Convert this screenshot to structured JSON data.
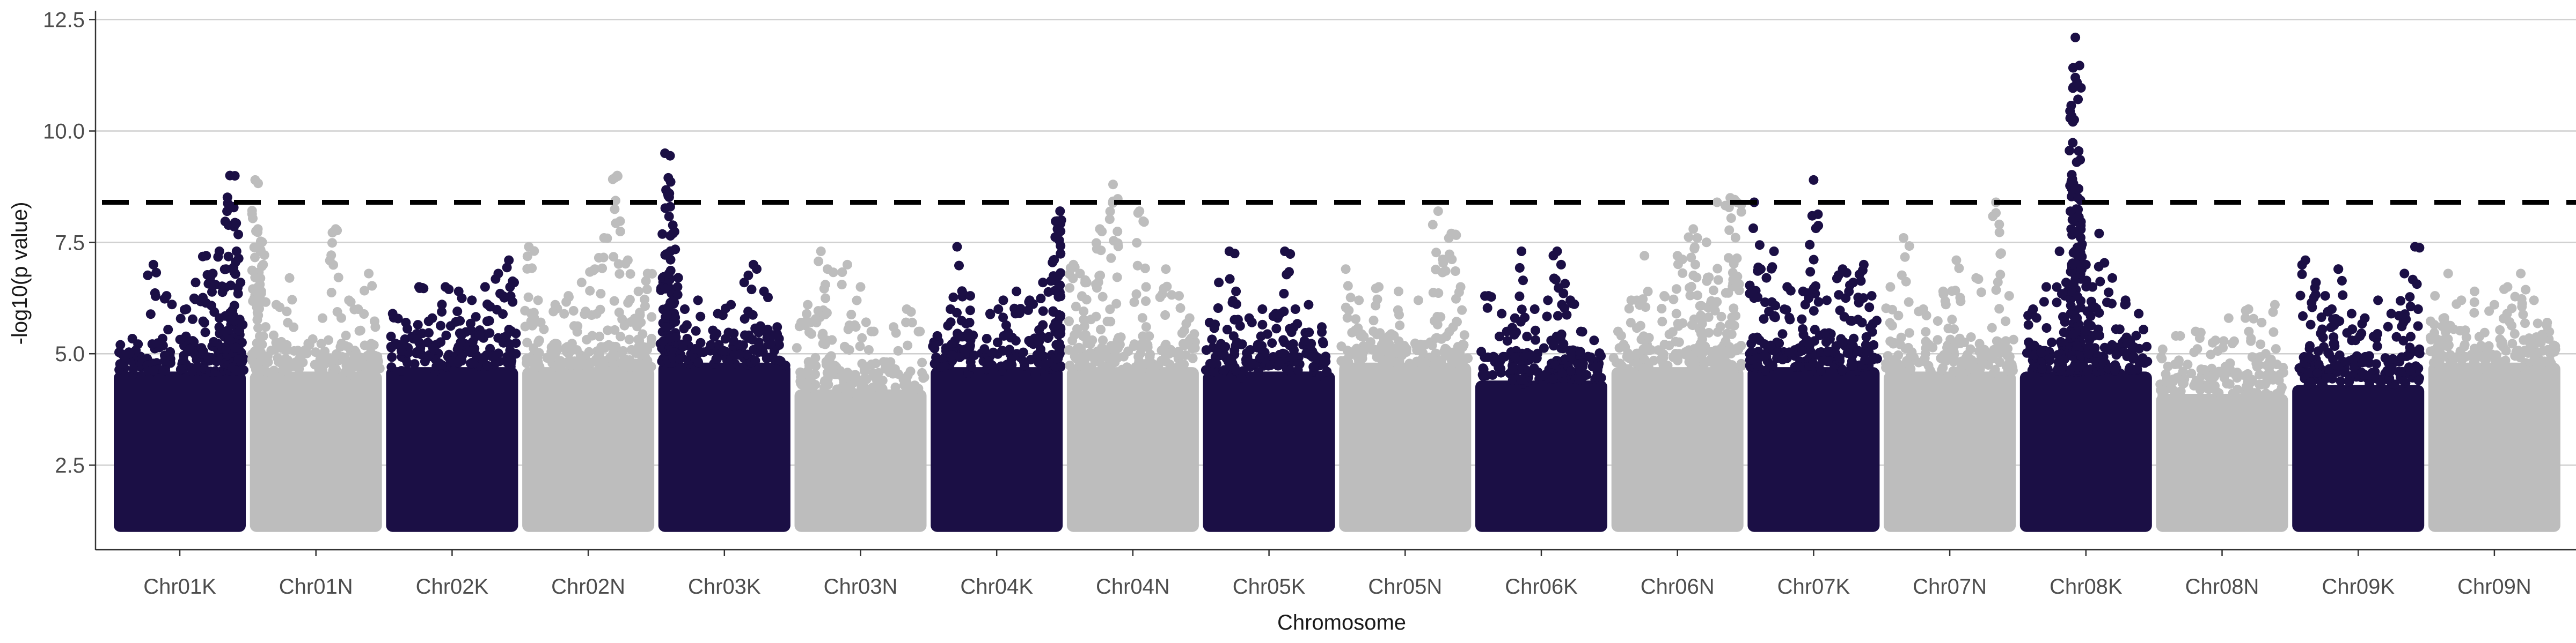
{
  "chart_data": {
    "type": "scatter",
    "subtype": "manhattan",
    "title": "",
    "xlabel": "Chromosome",
    "ylabel": "-log10(p value)",
    "ylim": [
      0.6,
      12.7
    ],
    "yticks": [
      2.5,
      5.0,
      7.5,
      10.0,
      12.5
    ],
    "ytick_labels": [
      "2.5",
      "5.0",
      "7.5",
      "10.0",
      "12.5"
    ],
    "grid": "horizontal major",
    "legend": "none",
    "threshold": 8.4,
    "colors": {
      "odd": "#1b0f45",
      "even": "#bdbdbd",
      "threshold": "#000000"
    },
    "chromosomes": [
      {
        "label": "Chr01K",
        "bulk_max": 4.6,
        "tops": [
          {
            "p": 0.05,
            "y": 5.2
          },
          {
            "p": 0.12,
            "y": 5.0
          },
          {
            "p": 0.3,
            "y": 7.0
          },
          {
            "p": 0.4,
            "y": 6.3
          },
          {
            "p": 0.55,
            "y": 6.0
          },
          {
            "p": 0.62,
            "y": 6.6
          },
          {
            "p": 0.7,
            "y": 7.2
          },
          {
            "p": 0.75,
            "y": 6.8
          },
          {
            "p": 0.8,
            "y": 7.3
          },
          {
            "p": 0.85,
            "y": 6.9
          },
          {
            "p": 0.88,
            "y": 9.0
          },
          {
            "p": 0.9,
            "y": 8.3
          },
          {
            "p": 0.93,
            "y": 7.3
          },
          {
            "p": 0.96,
            "y": 6.6
          }
        ]
      },
      {
        "label": "Chr01N",
        "bulk_max": 4.6,
        "tops": [
          {
            "p": 0.04,
            "y": 8.9
          },
          {
            "p": 0.06,
            "y": 7.8
          },
          {
            "p": 0.08,
            "y": 7.3
          },
          {
            "p": 0.1,
            "y": 7.0
          },
          {
            "p": 0.2,
            "y": 6.1
          },
          {
            "p": 0.3,
            "y": 6.7
          },
          {
            "p": 0.55,
            "y": 5.8
          },
          {
            "p": 0.65,
            "y": 7.8
          },
          {
            "p": 0.75,
            "y": 6.2
          },
          {
            "p": 0.82,
            "y": 6.0
          },
          {
            "p": 0.9,
            "y": 6.8
          },
          {
            "p": 0.95,
            "y": 5.6
          }
        ]
      },
      {
        "label": "Chr02K",
        "bulk_max": 4.7,
        "tops": [
          {
            "p": 0.05,
            "y": 5.9
          },
          {
            "p": 0.15,
            "y": 5.7
          },
          {
            "p": 0.25,
            "y": 6.5
          },
          {
            "p": 0.35,
            "y": 5.8
          },
          {
            "p": 0.45,
            "y": 6.5
          },
          {
            "p": 0.55,
            "y": 6.4
          },
          {
            "p": 0.65,
            "y": 6.2
          },
          {
            "p": 0.75,
            "y": 6.5
          },
          {
            "p": 0.85,
            "y": 6.8
          },
          {
            "p": 0.93,
            "y": 7.1
          },
          {
            "p": 0.97,
            "y": 6.6
          }
        ]
      },
      {
        "label": "Chr02N",
        "bulk_max": 4.7,
        "tops": [
          {
            "p": 0.05,
            "y": 7.4
          },
          {
            "p": 0.12,
            "y": 6.2
          },
          {
            "p": 0.25,
            "y": 6.1
          },
          {
            "p": 0.35,
            "y": 6.3
          },
          {
            "p": 0.45,
            "y": 6.6
          },
          {
            "p": 0.55,
            "y": 6.9
          },
          {
            "p": 0.62,
            "y": 7.6
          },
          {
            "p": 0.72,
            "y": 9.0
          },
          {
            "p": 0.8,
            "y": 7.1
          },
          {
            "p": 0.88,
            "y": 6.4
          },
          {
            "p": 0.95,
            "y": 6.8
          }
        ]
      },
      {
        "label": "Chr03K",
        "bulk_max": 4.8,
        "tops": [
          {
            "p": 0.05,
            "y": 9.5
          },
          {
            "p": 0.07,
            "y": 8.6
          },
          {
            "p": 0.09,
            "y": 8.3
          },
          {
            "p": 0.11,
            "y": 7.7
          },
          {
            "p": 0.08,
            "y": 6.8
          },
          {
            "p": 0.2,
            "y": 6.0
          },
          {
            "p": 0.3,
            "y": 6.2
          },
          {
            "p": 0.45,
            "y": 5.9
          },
          {
            "p": 0.55,
            "y": 6.1
          },
          {
            "p": 0.65,
            "y": 6.6
          },
          {
            "p": 0.72,
            "y": 7.0
          },
          {
            "p": 0.8,
            "y": 6.4
          },
          {
            "p": 0.9,
            "y": 5.6
          }
        ]
      },
      {
        "label": "Chr03N",
        "bulk_max": 4.2,
        "tops": [
          {
            "p": 0.05,
            "y": 5.7
          },
          {
            "p": 0.1,
            "y": 6.1
          },
          {
            "p": 0.2,
            "y": 7.3
          },
          {
            "p": 0.25,
            "y": 6.9
          },
          {
            "p": 0.4,
            "y": 7.0
          },
          {
            "p": 0.5,
            "y": 6.5
          },
          {
            "p": 0.6,
            "y": 5.5
          },
          {
            "p": 0.75,
            "y": 5.6
          },
          {
            "p": 0.85,
            "y": 6.0
          },
          {
            "p": 0.95,
            "y": 5.5
          }
        ]
      },
      {
        "label": "Chr04K",
        "bulk_max": 4.7,
        "tops": [
          {
            "p": 0.05,
            "y": 5.4
          },
          {
            "p": 0.15,
            "y": 6.0
          },
          {
            "p": 0.2,
            "y": 7.4
          },
          {
            "p": 0.3,
            "y": 6.3
          },
          {
            "p": 0.45,
            "y": 5.9
          },
          {
            "p": 0.55,
            "y": 6.2
          },
          {
            "p": 0.65,
            "y": 6.4
          },
          {
            "p": 0.75,
            "y": 6.2
          },
          {
            "p": 0.85,
            "y": 6.6
          },
          {
            "p": 0.93,
            "y": 7.1
          },
          {
            "p": 0.96,
            "y": 7.8
          },
          {
            "p": 0.98,
            "y": 8.2
          },
          {
            "p": 0.99,
            "y": 8.0
          }
        ]
      },
      {
        "label": "Chr04N",
        "bulk_max": 4.7,
        "tops": [
          {
            "p": 0.05,
            "y": 7.0
          },
          {
            "p": 0.1,
            "y": 6.8
          },
          {
            "p": 0.15,
            "y": 6.6
          },
          {
            "p": 0.25,
            "y": 7.8
          },
          {
            "p": 0.35,
            "y": 8.8
          },
          {
            "p": 0.55,
            "y": 8.2
          },
          {
            "p": 0.6,
            "y": 6.5
          },
          {
            "p": 0.75,
            "y": 6.9
          },
          {
            "p": 0.85,
            "y": 6.3
          },
          {
            "p": 0.93,
            "y": 5.8
          }
        ]
      },
      {
        "label": "Chr05K",
        "bulk_max": 4.6,
        "tops": [
          {
            "p": 0.05,
            "y": 5.7
          },
          {
            "p": 0.12,
            "y": 6.6
          },
          {
            "p": 0.2,
            "y": 7.3
          },
          {
            "p": 0.25,
            "y": 6.4
          },
          {
            "p": 0.35,
            "y": 5.8
          },
          {
            "p": 0.45,
            "y": 6.0
          },
          {
            "p": 0.55,
            "y": 5.9
          },
          {
            "p": 0.62,
            "y": 7.3
          },
          {
            "p": 0.7,
            "y": 6.0
          },
          {
            "p": 0.8,
            "y": 6.1
          },
          {
            "p": 0.9,
            "y": 5.6
          }
        ]
      },
      {
        "label": "Chr05N",
        "bulk_max": 4.8,
        "tops": [
          {
            "p": 0.05,
            "y": 6.9
          },
          {
            "p": 0.15,
            "y": 6.2
          },
          {
            "p": 0.3,
            "y": 6.5
          },
          {
            "p": 0.45,
            "y": 6.4
          },
          {
            "p": 0.6,
            "y": 6.2
          },
          {
            "p": 0.75,
            "y": 8.2
          },
          {
            "p": 0.85,
            "y": 7.7
          },
          {
            "p": 0.92,
            "y": 6.5
          }
        ]
      },
      {
        "label": "Chr06K",
        "bulk_max": 4.4,
        "tops": [
          {
            "p": 0.1,
            "y": 6.3
          },
          {
            "p": 0.2,
            "y": 5.9
          },
          {
            "p": 0.3,
            "y": 5.8
          },
          {
            "p": 0.35,
            "y": 7.3
          },
          {
            "p": 0.45,
            "y": 6.0
          },
          {
            "p": 0.55,
            "y": 6.2
          },
          {
            "p": 0.62,
            "y": 7.3
          },
          {
            "p": 0.65,
            "y": 7.0
          },
          {
            "p": 0.72,
            "y": 6.2
          },
          {
            "p": 0.8,
            "y": 5.5
          },
          {
            "p": 0.9,
            "y": 5.3
          }
        ]
      },
      {
        "label": "Chr06N",
        "bulk_max": 4.7,
        "tops": [
          {
            "p": 0.05,
            "y": 5.5
          },
          {
            "p": 0.15,
            "y": 6.2
          },
          {
            "p": 0.25,
            "y": 7.2
          },
          {
            "p": 0.4,
            "y": 6.3
          },
          {
            "p": 0.5,
            "y": 7.2
          },
          {
            "p": 0.62,
            "y": 7.8
          },
          {
            "p": 0.65,
            "y": 7.6
          },
          {
            "p": 0.72,
            "y": 7.5
          },
          {
            "p": 0.8,
            "y": 8.4
          },
          {
            "p": 0.9,
            "y": 8.5
          },
          {
            "p": 0.95,
            "y": 8.4
          }
        ]
      },
      {
        "label": "Chr07K",
        "bulk_max": 4.7,
        "tops": [
          {
            "p": 0.05,
            "y": 8.4
          },
          {
            "p": 0.1,
            "y": 6.9
          },
          {
            "p": 0.2,
            "y": 7.3
          },
          {
            "p": 0.3,
            "y": 6.5
          },
          {
            "p": 0.42,
            "y": 6.4
          },
          {
            "p": 0.5,
            "y": 8.9
          },
          {
            "p": 0.6,
            "y": 6.2
          },
          {
            "p": 0.72,
            "y": 6.9
          },
          {
            "p": 0.8,
            "y": 6.6
          },
          {
            "p": 0.88,
            "y": 7.0
          },
          {
            "p": 0.94,
            "y": 6.3
          }
        ]
      },
      {
        "label": "Chr07N",
        "bulk_max": 4.6,
        "tops": [
          {
            "p": 0.05,
            "y": 6.5
          },
          {
            "p": 0.15,
            "y": 7.6
          },
          {
            "p": 0.3,
            "y": 6.0
          },
          {
            "p": 0.45,
            "y": 6.4
          },
          {
            "p": 0.55,
            "y": 7.1
          },
          {
            "p": 0.7,
            "y": 6.7
          },
          {
            "p": 0.85,
            "y": 8.4
          },
          {
            "p": 0.95,
            "y": 6.3
          }
        ]
      },
      {
        "label": "Chr08K",
        "bulk_max": 4.6,
        "tops": [
          {
            "p": 0.1,
            "y": 6.0
          },
          {
            "p": 0.2,
            "y": 6.5
          },
          {
            "p": 0.3,
            "y": 7.3
          },
          {
            "p": 0.35,
            "y": 6.6
          },
          {
            "p": 0.42,
            "y": 12.1
          },
          {
            "p": 0.42,
            "y": 11.2
          },
          {
            "p": 0.43,
            "y": 9.3
          },
          {
            "p": 0.42,
            "y": 8.7
          },
          {
            "p": 0.44,
            "y": 8.5
          },
          {
            "p": 0.5,
            "y": 7.0
          },
          {
            "p": 0.55,
            "y": 6.5
          },
          {
            "p": 0.6,
            "y": 7.7
          },
          {
            "p": 0.7,
            "y": 6.7
          },
          {
            "p": 0.8,
            "y": 6.2
          },
          {
            "p": 0.9,
            "y": 5.9
          }
        ]
      },
      {
        "label": "Chr08N",
        "bulk_max": 4.1,
        "tops": [
          {
            "p": 0.05,
            "y": 5.1
          },
          {
            "p": 0.15,
            "y": 5.4
          },
          {
            "p": 0.3,
            "y": 5.5
          },
          {
            "p": 0.45,
            "y": 5.3
          },
          {
            "p": 0.55,
            "y": 5.8
          },
          {
            "p": 0.7,
            "y": 6.0
          },
          {
            "p": 0.8,
            "y": 5.7
          },
          {
            "p": 0.9,
            "y": 6.1
          }
        ]
      },
      {
        "label": "Chr09K",
        "bulk_max": 4.3,
        "tops": [
          {
            "p": 0.1,
            "y": 7.1
          },
          {
            "p": 0.18,
            "y": 6.6
          },
          {
            "p": 0.25,
            "y": 6.3
          },
          {
            "p": 0.3,
            "y": 6.0
          },
          {
            "p": 0.35,
            "y": 6.9
          },
          {
            "p": 0.45,
            "y": 5.9
          },
          {
            "p": 0.55,
            "y": 5.8
          },
          {
            "p": 0.65,
            "y": 6.2
          },
          {
            "p": 0.75,
            "y": 5.9
          },
          {
            "p": 0.85,
            "y": 6.8
          },
          {
            "p": 0.93,
            "y": 7.4
          }
        ]
      },
      {
        "label": "Chr09N",
        "bulk_max": 4.8,
        "tops": [
          {
            "p": 0.05,
            "y": 6.3
          },
          {
            "p": 0.15,
            "y": 6.8
          },
          {
            "p": 0.25,
            "y": 6.2
          },
          {
            "p": 0.35,
            "y": 6.4
          },
          {
            "p": 0.5,
            "y": 6.1
          },
          {
            "p": 0.6,
            "y": 6.5
          },
          {
            "p": 0.7,
            "y": 6.8
          },
          {
            "p": 0.8,
            "y": 6.2
          },
          {
            "p": 0.9,
            "y": 5.7
          }
        ]
      }
    ]
  }
}
